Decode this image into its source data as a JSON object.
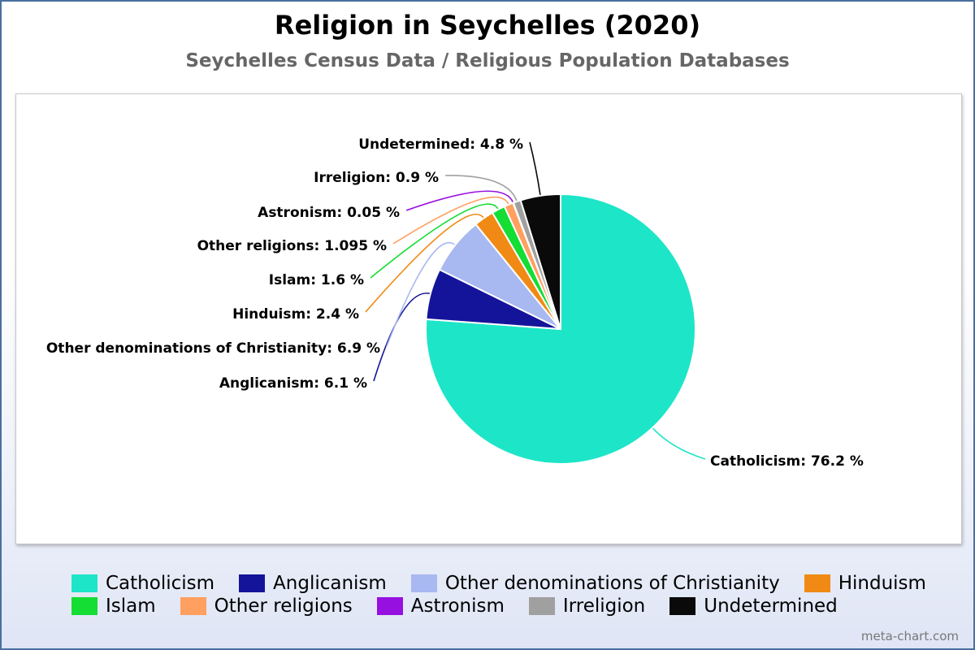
{
  "chart_data": {
    "type": "pie",
    "title": "Religion in Seychelles (2020)",
    "subtitle": "Seychelles Census Data / Religious Population Databases",
    "unit": "%",
    "legend_placement": "bottom",
    "slices": [
      {
        "name": "Catholicism",
        "value": 76.2,
        "display": "76.2",
        "color": "#1de5c8"
      },
      {
        "name": "Anglicanism",
        "value": 6.1,
        "display": "6.1",
        "color": "#14149a"
      },
      {
        "name": "Other denominations of Christianity",
        "value": 6.9,
        "display": "6.9",
        "color": "#a8b8f0"
      },
      {
        "name": "Hinduism",
        "value": 2.4,
        "display": "2.4",
        "color": "#f08a14"
      },
      {
        "name": "Islam",
        "value": 1.6,
        "display": "1.6",
        "color": "#14dd34"
      },
      {
        "name": "Other religions",
        "value": 1.095,
        "display": "1.095",
        "color": "#ff9f60"
      },
      {
        "name": "Astronism",
        "value": 0.05,
        "display": "0.05",
        "color": "#9610e0"
      },
      {
        "name": "Irreligion",
        "value": 0.9,
        "display": "0.9",
        "color": "#a0a0a0"
      },
      {
        "name": "Undetermined",
        "value": 4.8,
        "display": "4.8",
        "color": "#0a0a0a"
      }
    ]
  },
  "legend_rows": [
    [
      {
        "label": "Catholicism",
        "color": "#1de5c8"
      },
      {
        "label": "Anglicanism",
        "color": "#14149a"
      },
      {
        "label": "Other denominations of Christianity",
        "color": "#a8b8f0"
      },
      {
        "label": "Hinduism",
        "color": "#f08a14"
      }
    ],
    [
      {
        "label": "Islam",
        "color": "#14dd34"
      },
      {
        "label": "Other religions",
        "color": "#ff9f60"
      },
      {
        "label": "Astronism",
        "color": "#9610e0"
      },
      {
        "label": "Irreligion",
        "color": "#a0a0a0"
      },
      {
        "label": "Undetermined",
        "color": "#0a0a0a"
      }
    ]
  ],
  "credit": "meta-chart.com"
}
